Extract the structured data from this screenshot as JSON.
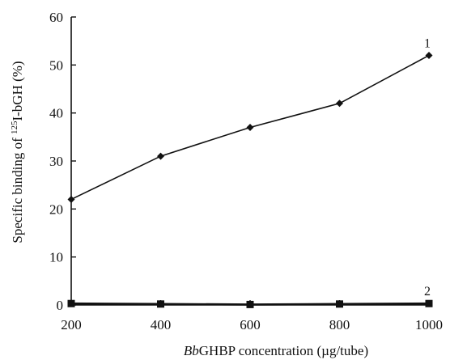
{
  "chart_data": {
    "type": "line",
    "xlabel": {
      "italic": "Bb",
      "rest": "GHBP concentration (µg/tube)"
    },
    "ylabel": {
      "pre": "Specific binding of ",
      "sup": "125",
      "post": "I-bGH (%)"
    },
    "x": [
      200,
      400,
      600,
      800,
      1000
    ],
    "xlim": [
      200,
      1000
    ],
    "ylim": [
      0,
      60
    ],
    "xticks": [
      "200",
      "400",
      "600",
      "800",
      "1000"
    ],
    "yticks": [
      "0",
      "10",
      "20",
      "30",
      "40",
      "50",
      "60"
    ],
    "grid": false,
    "series": [
      {
        "tag": "1",
        "marker": "diamond",
        "values": [
          22,
          31,
          37,
          42,
          52
        ]
      },
      {
        "tag": "2",
        "marker": "square",
        "values": [
          0.3,
          0.2,
          0.1,
          0.2,
          0.3
        ]
      }
    ],
    "colors": {
      "line": "#111111",
      "axis": "#111111"
    }
  }
}
